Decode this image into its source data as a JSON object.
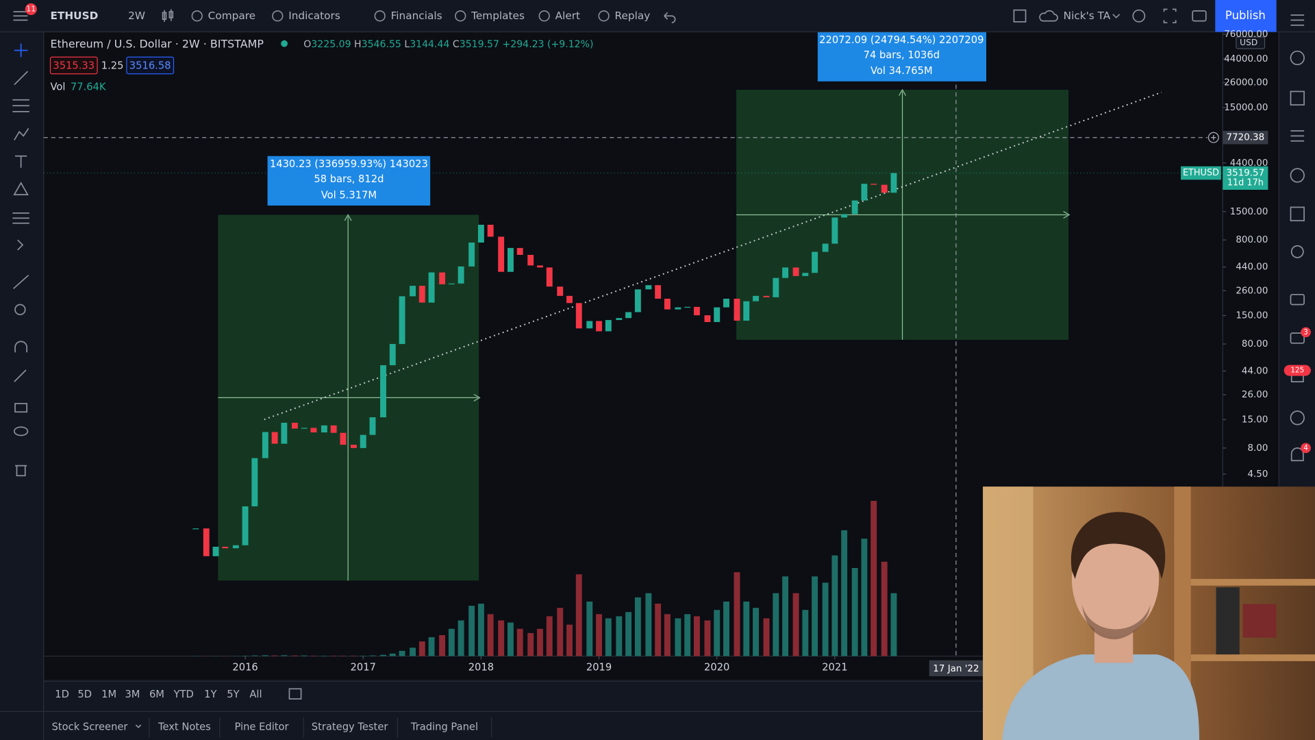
{
  "toolbar": {
    "symbol": "ETHUSD",
    "interval": "2W",
    "items": [
      "Compare",
      "Indicators",
      "Financials",
      "Templates",
      "Alert",
      "Replay"
    ],
    "layout": "Nick's TA",
    "publish": "Publish",
    "menu_badge": "11"
  },
  "legend": {
    "title": "Ethereum / U.S. Dollar · 2W · BITSTAMP",
    "ohlc": [
      {
        "key": "O",
        "value": "3225.09"
      },
      {
        "key": "H",
        "value": "3546.55"
      },
      {
        "key": "L",
        "value": "3144.44"
      },
      {
        "key": "C",
        "value": "3519.57"
      }
    ],
    "change": "+294.23 (+9.12%)",
    "bid": "3515.33",
    "spread": "1.25",
    "ask": "3516.58",
    "volume_label": "Vol",
    "volume": "77.64K"
  },
  "measures": [
    {
      "lines": [
        "1430.23 (336959.93%) 143023",
        "58 bars, 812d",
        "Vol 5.317M"
      ]
    },
    {
      "lines": [
        "22072.09 (24794.54%) 2207209",
        "74 bars, 1036d",
        "Vol 34.765M"
      ]
    }
  ],
  "chart_data": {
    "type": "candlestick",
    "currency": "USD",
    "symbol_label": "ETHUSD",
    "last_price": 3519.57,
    "countdown": "11d 17h",
    "crosshair": {
      "price": 7720.38,
      "date": "17 Jan '22"
    },
    "log_scale": true,
    "grid": false,
    "up_color": "#22ab94",
    "down_color": "#f23645",
    "x": [
      2015.58,
      2015.67,
      2015.75,
      2015.83,
      2015.92,
      2016,
      2016.08,
      2016.17,
      2016.25,
      2016.33,
      2016.42,
      2016.5,
      2016.58,
      2016.67,
      2016.75,
      2016.83,
      2016.92,
      2017,
      2017.08,
      2017.17,
      2017.25,
      2017.33,
      2017.42,
      2017.5,
      2017.58,
      2017.67,
      2017.75,
      2017.83,
      2017.92,
      2018,
      2018.08,
      2018.17,
      2018.25,
      2018.33,
      2018.42,
      2018.5,
      2018.58,
      2018.67,
      2018.75,
      2018.83,
      2018.92,
      2019,
      2019.08,
      2019.17,
      2019.25,
      2019.33,
      2019.42,
      2019.5,
      2019.58,
      2019.67,
      2019.75,
      2019.83,
      2019.92,
      2020,
      2020.08,
      2020.17,
      2020.25,
      2020.33,
      2020.42,
      2020.5,
      2020.58,
      2020.67,
      2020.75,
      2020.83,
      2020.92,
      2021,
      2021.08,
      2021.17,
      2021.25,
      2021.33,
      2021.42,
      2021.5
    ],
    "values": [
      1.35,
      0.73,
      0.9,
      0.87,
      0.93,
      2.2,
      6.4,
      11.4,
      8.8,
      14,
      12.3,
      12.5,
      11.3,
      13.2,
      11.2,
      8.6,
      8,
      10.7,
      15.8,
      50,
      80,
      230,
      290,
      200,
      390,
      300,
      305,
      445,
      755,
      1120,
      860,
      395,
      670,
      575,
      455,
      435,
      285,
      232,
      198,
      113,
      133,
      106,
      136,
      142,
      162,
      268,
      294,
      218,
      172,
      180,
      182,
      151,
      130,
      180,
      218,
      134,
      206,
      232,
      225,
      345,
      435,
      360,
      386,
      615,
      737,
      1314,
      1417,
      1918,
      2772,
      2714,
      2275,
      3519.57
    ],
    "volume": {
      "name": "Vol",
      "axis": "y2",
      "up_color": "#1d6e66",
      "down_color": "#8c2a33",
      "values": [
        1,
        1,
        1,
        1,
        1,
        2,
        3,
        4,
        3,
        4,
        3,
        3,
        2,
        2,
        2,
        2,
        2,
        2,
        3,
        6,
        12,
        25,
        40,
        70,
        90,
        100,
        130,
        170,
        240,
        250,
        200,
        170,
        160,
        130,
        110,
        130,
        190,
        230,
        150,
        390,
        260,
        200,
        180,
        190,
        210,
        280,
        300,
        250,
        200,
        180,
        200,
        190,
        170,
        220,
        260,
        400,
        260,
        230,
        180,
        300,
        380,
        300,
        220,
        380,
        350,
        480,
        600,
        420,
        560,
        740,
        450,
        300
      ]
    },
    "xlim": [
      2014.29,
      2024.29
    ],
    "xticks": [
      2016,
      2017,
      2018,
      2019,
      2020,
      2021
    ],
    "ylim": [
      0.08,
      80000
    ],
    "yticks": [
      {
        "value": 76000,
        "label": "76000.00"
      },
      {
        "value": 44000,
        "label": "44000.00"
      },
      {
        "value": 26000,
        "label": "26000.00"
      },
      {
        "value": 15000,
        "label": "15000.00"
      },
      {
        "value": 4400,
        "label": "4400.00"
      },
      {
        "value": 1500,
        "label": "1500.00"
      },
      {
        "value": 800,
        "label": "800.00"
      },
      {
        "value": 440,
        "label": "440.00"
      },
      {
        "value": 260,
        "label": "260.00"
      },
      {
        "value": 150,
        "label": "150.00"
      },
      {
        "value": 80,
        "label": "80.00"
      },
      {
        "value": 44,
        "label": "44.00"
      },
      {
        "value": 26,
        "label": "26.00"
      },
      {
        "value": 15,
        "label": "15.00"
      },
      {
        "value": 8,
        "label": "8.00"
      },
      {
        "value": 4.5,
        "label": "4.50"
      }
    ],
    "y2lim": [
      0,
      800
    ]
  },
  "range_buttons": [
    "1D",
    "5D",
    "1M",
    "3M",
    "6M",
    "YTD",
    "1Y",
    "5Y",
    "All"
  ],
  "bottom_tabs": [
    "Stock Screener",
    "Text Notes",
    "Pine Editor",
    "Strategy Tester",
    "Trading Panel"
  ],
  "sidebar_badges": [
    "3",
    "125",
    "4"
  ]
}
